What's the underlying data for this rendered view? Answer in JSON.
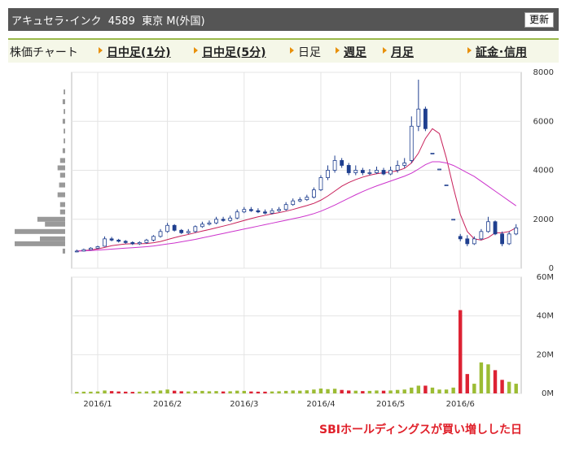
{
  "header": {
    "title": "アキュセラ･インク  4589  東京 M(外国)",
    "button": "更新"
  },
  "tabs": [
    "株価チャート",
    "日中足(1分)",
    "日中足(5分)",
    "日足",
    "週足",
    "月足",
    "証金･信用"
  ],
  "chart_data": {
    "type": "candlestick",
    "annotation": "SBIホールディングスが買い増しした日",
    "grid": true,
    "xticks": [
      {
        "value": 3,
        "label": "2016/1"
      },
      {
        "value": 13,
        "label": "2016/2"
      },
      {
        "value": 24,
        "label": "2016/3"
      },
      {
        "value": 35,
        "label": "2016/4"
      },
      {
        "value": 45,
        "label": "2016/5"
      },
      {
        "value": 55,
        "label": "2016/6"
      }
    ],
    "ylim": [
      0,
      8000
    ],
    "yticks": [
      0,
      2000,
      4000,
      6000,
      8000
    ],
    "up_color": "#ffffff",
    "down_color": "#1f3f8f",
    "edge_color": "#1f3f8f",
    "open": [
      680,
      700,
      760,
      820,
      900,
      1200,
      1150,
      1100,
      1050,
      1000,
      1050,
      1150,
      1300,
      1500,
      1750,
      1550,
      1450,
      1500,
      1700,
      1800,
      1850,
      2000,
      1950,
      2050,
      2300,
      2400,
      2350,
      2300,
      2250,
      2350,
      2400,
      2600,
      2750,
      2800,
      2900,
      3200,
      3700,
      4000,
      4400,
      4200,
      3900,
      4000,
      3900,
      3900,
      4000,
      3850,
      4000,
      4200,
      4400,
      5800,
      6500,
      4700,
      4050,
      3400,
      2000,
      1300,
      1200,
      1000,
      1200,
      1500,
      1900,
      1400,
      1000,
      1400
    ],
    "high": [
      760,
      800,
      860,
      920,
      1300,
      1280,
      1200,
      1150,
      1100,
      1100,
      1200,
      1350,
      1600,
      1850,
      1800,
      1600,
      1600,
      1750,
      1900,
      1950,
      2100,
      2100,
      2150,
      2400,
      2500,
      2500,
      2450,
      2400,
      2450,
      2500,
      2700,
      2850,
      2900,
      3000,
      3300,
      3800,
      4200,
      4600,
      4500,
      4300,
      4200,
      4100,
      4050,
      4150,
      4100,
      4150,
      4400,
      4500,
      6200,
      7700,
      6600,
      4700,
      4050,
      3400,
      2000,
      1400,
      1350,
      1300,
      1600,
      2100,
      1950,
      1500,
      1500,
      1800
    ],
    "low": [
      650,
      680,
      740,
      800,
      880,
      1100,
      1050,
      1000,
      950,
      950,
      1000,
      1100,
      1250,
      1450,
      1500,
      1400,
      1400,
      1450,
      1650,
      1750,
      1800,
      1900,
      1900,
      2000,
      2250,
      2300,
      2250,
      2200,
      2200,
      2300,
      2350,
      2550,
      2700,
      2750,
      2850,
      3150,
      3600,
      3900,
      4100,
      3800,
      3800,
      3800,
      3800,
      3850,
      3800,
      3800,
      3900,
      4100,
      4300,
      5600,
      5600,
      4700,
      4050,
      3400,
      2000,
      1100,
      900,
      950,
      1150,
      1450,
      1350,
      900,
      950,
      1350
    ],
    "close": [
      700,
      760,
      820,
      880,
      1200,
      1150,
      1100,
      1050,
      1000,
      1050,
      1150,
      1300,
      1500,
      1750,
      1550,
      1450,
      1500,
      1700,
      1800,
      1850,
      2000,
      1950,
      2050,
      2300,
      2400,
      2350,
      2300,
      2250,
      2350,
      2400,
      2600,
      2750,
      2800,
      2900,
      3200,
      3700,
      4000,
      4400,
      4200,
      3900,
      4000,
      3900,
      3900,
      4000,
      3850,
      4000,
      4200,
      4300,
      5800,
      6500,
      5700,
      4700,
      4050,
      3400,
      2000,
      1200,
      1000,
      1200,
      1500,
      1900,
      1400,
      1000,
      1400,
      1650
    ],
    "moving_averages": [
      {
        "color": "#c8205a",
        "values": [
          700,
          720,
          750,
          790,
          850,
          920,
          960,
          990,
          1000,
          1000,
          1010,
          1040,
          1090,
          1170,
          1250,
          1320,
          1380,
          1450,
          1520,
          1580,
          1650,
          1720,
          1790,
          1870,
          1950,
          2030,
          2100,
          2160,
          2220,
          2270,
          2330,
          2400,
          2480,
          2560,
          2650,
          2780,
          2950,
          3150,
          3350,
          3500,
          3620,
          3720,
          3800,
          3860,
          3900,
          3930,
          3980,
          4080,
          4300,
          4700,
          5300,
          5700,
          5500,
          4500,
          3300,
          2200,
          1500,
          1200,
          1150,
          1250,
          1450,
          1450,
          1500,
          1650
        ]
      },
      {
        "color": "#cc33cc",
        "values": [
          700,
          710,
          720,
          740,
          760,
          780,
          800,
          820,
          840,
          860,
          880,
          910,
          950,
          990,
          1030,
          1080,
          1130,
          1180,
          1240,
          1300,
          1360,
          1420,
          1480,
          1540,
          1600,
          1660,
          1720,
          1780,
          1840,
          1900,
          1960,
          2020,
          2080,
          2150,
          2230,
          2330,
          2450,
          2580,
          2720,
          2860,
          3000,
          3130,
          3250,
          3360,
          3460,
          3560,
          3660,
          3760,
          3880,
          4050,
          4230,
          4350,
          4350,
          4300,
          4200,
          4050,
          3900,
          3750,
          3550,
          3350,
          3150,
          2950,
          2750,
          2550
        ]
      }
    ],
    "volume": {
      "type": "bar",
      "ylim": [
        0,
        60
      ],
      "yticks": [
        {
          "value": 0,
          "label": "0M"
        },
        {
          "value": 20,
          "label": "20M"
        },
        {
          "value": 40,
          "label": "40M"
        },
        {
          "value": 60,
          "label": "60M"
        }
      ],
      "up_color": "#9cbc34",
      "down_color": "#dd2233",
      "values": [
        0.8,
        0.9,
        0.9,
        1,
        1.5,
        1.2,
        1,
        0.9,
        0.8,
        0.9,
        1,
        1.2,
        1.5,
        2,
        1.4,
        1.1,
        1,
        1.2,
        1.3,
        1.1,
        1.2,
        1,
        1.1,
        1.4,
        1.3,
        1,
        0.9,
        0.9,
        1,
        1.1,
        1.3,
        1.5,
        1.4,
        1.6,
        2,
        2.5,
        2.2,
        2.4,
        1.8,
        1.5,
        1.4,
        1.2,
        1.3,
        1.5,
        1.4,
        1.5,
        1.8,
        2,
        3,
        4,
        4,
        3,
        2,
        2,
        3,
        43,
        10,
        5,
        16,
        15,
        12,
        7,
        6,
        5
      ]
    },
    "volume_profile": {
      "color": "#999999",
      "prices": [
        700,
        1000,
        1200,
        1500,
        1800,
        2000,
        2300,
        2600,
        3000,
        3400,
        3800,
        4100,
        4400,
        4800,
        5200,
        5600,
        6000,
        6400,
        6800,
        7200
      ],
      "values": [
        5,
        100,
        50,
        100,
        40,
        55,
        10,
        10,
        15,
        12,
        10,
        15,
        10,
        5,
        3,
        3,
        5,
        3,
        5,
        3
      ]
    }
  }
}
